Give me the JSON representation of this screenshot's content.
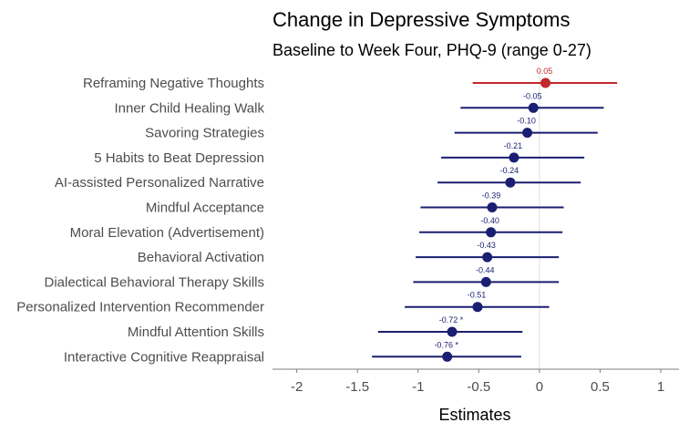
{
  "chart_data": {
    "type": "scatter",
    "title": "Change in Depressive Symptoms",
    "subtitle": "Baseline to Week Four, PHQ-9 (range 0-27)",
    "xlabel": "Estimates",
    "ylabel": "",
    "xlim": [
      -2.2,
      1.15
    ],
    "xticks": [
      -2,
      -1.5,
      -1,
      -0.5,
      0,
      0.5,
      1
    ],
    "xtick_labels": [
      "-2",
      "-1.5",
      "-1",
      "-0.5",
      "0",
      "0.5",
      "1"
    ],
    "reference_line": 0,
    "grid": false,
    "colors": {
      "positive": "#c1272d",
      "negative": "#1a1f71",
      "reference_line": "#e0e0e0",
      "axis_line": "#7f7f7f"
    },
    "categories": [
      "Reframing Negative Thoughts",
      "Inner Child Healing Walk",
      "Savoring Strategies",
      "5 Habits to Beat Depression",
      "AI-assisted Personalized Narrative",
      "Mindful Acceptance",
      "Moral Elevation (Advertisement)",
      "Behavioral Activation",
      "Dialectical Behavioral Therapy Skills",
      "Personalized Intervention Recommender",
      "Mindful Attention Skills",
      "Interactive Cognitive Reappraisal"
    ],
    "estimates": [
      0.05,
      -0.05,
      -0.1,
      -0.21,
      -0.24,
      -0.39,
      -0.4,
      -0.43,
      -0.44,
      -0.51,
      -0.72,
      -0.76
    ],
    "ci_low": [
      -0.55,
      -0.65,
      -0.7,
      -0.81,
      -0.84,
      -0.98,
      -0.99,
      -1.02,
      -1.04,
      -1.11,
      -1.33,
      -1.38
    ],
    "ci_high": [
      0.64,
      0.53,
      0.48,
      0.37,
      0.34,
      0.2,
      0.19,
      0.16,
      0.16,
      0.08,
      -0.14,
      -0.15
    ],
    "labels": [
      "0.05",
      "-0.05",
      "-0.10",
      "-0.21",
      "-0.24",
      "-0.39",
      "-0.40",
      "-0.43",
      "-0.44",
      "-0.51",
      "-0.72 *",
      "-0.76 *"
    ]
  }
}
